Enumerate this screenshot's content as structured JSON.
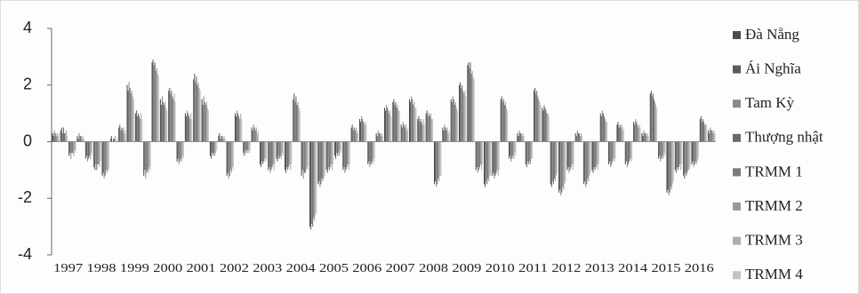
{
  "chart_data": {
    "type": "bar",
    "categories": [
      "1997",
      null,
      null,
      null,
      "1998",
      null,
      null,
      null,
      "1999",
      null,
      null,
      null,
      "2000",
      null,
      null,
      null,
      "2001",
      null,
      null,
      null,
      "2002",
      null,
      null,
      null,
      "2003",
      null,
      null,
      null,
      "2004",
      null,
      null,
      null,
      "2005",
      null,
      null,
      null,
      "2006",
      null,
      null,
      null,
      "2007",
      null,
      null,
      null,
      "2008",
      null,
      null,
      null,
      "2009",
      null,
      null,
      null,
      "2010",
      null,
      null,
      null,
      "2011",
      null,
      null,
      null,
      "2012",
      null,
      null,
      null,
      "2013",
      null,
      null,
      null,
      "2014",
      null,
      null,
      null,
      "2015",
      null,
      null,
      null,
      "2016",
      null,
      null,
      null
    ],
    "ylim": [
      -4,
      4
    ],
    "yticks": [
      4,
      2,
      0,
      -2,
      -4
    ],
    "grid": false,
    "series": [
      {
        "name": "Đà Nẵng",
        "color": "#4d4d4d",
        "values": [
          0.3,
          0.4,
          -0.5,
          0.2,
          -0.6,
          -0.9,
          -1.2,
          0.1,
          0.5,
          2.0,
          1.0,
          -1.2,
          2.8,
          1.5,
          1.8,
          -0.7,
          1.0,
          2.2,
          1.5,
          -0.5,
          0.2,
          -1.2,
          1.0,
          -0.4,
          0.5,
          -0.8,
          -1.0,
          -0.6,
          -1.0,
          1.5,
          -1.2,
          -3.0,
          -1.5,
          -1.0,
          -0.5,
          -1.0,
          0.5,
          0.8,
          -0.8,
          0.3,
          1.2,
          1.4,
          0.6,
          1.5,
          0.8,
          1.0,
          -1.5,
          0.5,
          1.5,
          2.0,
          2.7,
          -1.0,
          -1.5,
          -1.2,
          1.5,
          -0.6,
          0.3,
          -0.8,
          1.8,
          1.2,
          -1.5,
          -1.8,
          -1.0,
          0.3,
          -1.5,
          -1.0,
          1.0,
          -0.8,
          0.6,
          -0.8,
          0.7,
          0.3,
          1.7,
          -0.6,
          -1.8,
          -1.0,
          -1.2,
          -0.8,
          0.8,
          0.4
        ]
      },
      {
        "name": "Ái Nghĩa",
        "color": "#5c5c5c",
        "values": [
          0.2,
          0.5,
          -0.4,
          0.1,
          -0.5,
          -1.0,
          -1.1,
          0.2,
          0.6,
          1.8,
          1.1,
          -1.0,
          2.9,
          1.3,
          1.9,
          -0.6,
          0.9,
          2.4,
          1.3,
          -0.6,
          0.3,
          -1.1,
          0.9,
          -0.5,
          0.4,
          -0.9,
          -0.9,
          -0.7,
          -1.1,
          1.7,
          -1.0,
          -3.1,
          -1.4,
          -1.1,
          -0.6,
          -0.9,
          0.6,
          0.7,
          -0.7,
          0.2,
          1.1,
          1.5,
          0.5,
          1.4,
          0.9,
          1.1,
          -1.4,
          0.4,
          1.4,
          2.1,
          2.8,
          -0.9,
          -1.6,
          -1.1,
          1.6,
          -0.5,
          0.2,
          -0.9,
          1.9,
          1.1,
          -1.6,
          -1.7,
          -0.9,
          0.2,
          -1.4,
          -1.1,
          0.9,
          -0.7,
          0.7,
          -0.7,
          0.6,
          0.2,
          1.8,
          -0.5,
          -1.7,
          -1.1,
          -1.3,
          -0.7,
          0.9,
          0.3
        ]
      },
      {
        "name": "Tam Kỳ",
        "color": "#8a8a8a",
        "values": [
          0.4,
          0.3,
          -0.6,
          0.3,
          -0.7,
          -0.8,
          -1.3,
          0.0,
          0.4,
          2.1,
          0.9,
          -1.3,
          2.7,
          1.6,
          1.7,
          -0.8,
          1.1,
          2.1,
          1.6,
          -0.4,
          0.1,
          -1.3,
          1.1,
          -0.3,
          0.6,
          -0.7,
          -1.1,
          -0.5,
          -0.9,
          1.4,
          -1.3,
          -2.9,
          -1.6,
          -0.9,
          -0.4,
          -1.1,
          0.4,
          0.9,
          -0.9,
          0.4,
          1.3,
          1.3,
          0.7,
          1.6,
          0.7,
          0.9,
          -1.6,
          0.6,
          1.6,
          1.9,
          2.6,
          -1.1,
          -1.4,
          -1.3,
          1.4,
          -0.7,
          0.4,
          -0.7,
          1.7,
          1.3,
          -1.4,
          -1.9,
          -1.1,
          0.4,
          -1.6,
          -0.9,
          1.1,
          -0.9,
          0.5,
          -0.9,
          0.8,
          0.4,
          1.6,
          -0.7,
          -1.9,
          -0.9,
          -1.1,
          -0.9,
          0.7,
          0.5
        ]
      },
      {
        "name": "Thượng nhật",
        "color": "#6a6a6a",
        "values": [
          0.3,
          0.5,
          -0.4,
          0.2,
          -0.6,
          -1.0,
          -1.2,
          0.1,
          0.5,
          1.9,
          1.0,
          -1.1,
          2.8,
          1.4,
          1.8,
          -0.7,
          1.0,
          2.3,
          1.4,
          -0.5,
          0.2,
          -1.2,
          1.0,
          -0.4,
          0.5,
          -0.8,
          -1.0,
          -0.6,
          -1.0,
          1.6,
          -1.1,
          -3.0,
          -1.5,
          -1.0,
          -0.5,
          -1.0,
          0.5,
          0.8,
          -0.8,
          0.3,
          1.2,
          1.4,
          0.6,
          1.5,
          0.8,
          1.0,
          -1.5,
          0.5,
          1.5,
          2.0,
          2.8,
          -1.0,
          -1.5,
          -1.2,
          1.5,
          -0.6,
          0.3,
          -0.8,
          1.8,
          1.2,
          -1.5,
          -1.8,
          -1.0,
          0.3,
          -1.5,
          -1.0,
          1.0,
          -0.8,
          0.6,
          -0.8,
          0.7,
          0.3,
          1.7,
          -0.6,
          -1.8,
          -1.0,
          -1.2,
          -0.8,
          0.8,
          0.4
        ]
      },
      {
        "name": "TRMM 1",
        "color": "#7a7a7a",
        "values": [
          0.2,
          0.3,
          -0.4,
          0.2,
          -0.5,
          -0.8,
          -1.0,
          0.1,
          0.4,
          1.7,
          0.9,
          -1.0,
          2.5,
          1.3,
          1.6,
          -0.6,
          0.9,
          2.0,
          1.3,
          -0.4,
          0.2,
          -1.0,
          0.9,
          -0.3,
          0.4,
          -0.7,
          -0.9,
          -0.5,
          -0.9,
          1.3,
          -1.1,
          -2.7,
          -1.3,
          -0.9,
          -0.4,
          -0.9,
          0.4,
          0.7,
          -0.7,
          0.3,
          1.1,
          1.2,
          0.5,
          1.3,
          0.7,
          0.9,
          -1.3,
          0.4,
          1.3,
          1.8,
          2.4,
          -0.9,
          -1.3,
          -1.1,
          1.3,
          -0.5,
          0.3,
          -0.7,
          1.6,
          1.1,
          -1.3,
          -1.6,
          -0.9,
          0.3,
          -1.3,
          -0.9,
          0.9,
          -0.7,
          0.5,
          -0.7,
          0.6,
          0.3,
          1.5,
          -0.5,
          -1.6,
          -0.9,
          -1.1,
          -0.7,
          0.7,
          0.4
        ]
      },
      {
        "name": "TRMM 2",
        "color": "#9a9a9a",
        "values": [
          0.3,
          0.3,
          -0.5,
          0.1,
          -0.6,
          -0.8,
          -1.1,
          0.2,
          0.5,
          1.8,
          0.8,
          -1.1,
          2.6,
          1.4,
          1.5,
          -0.7,
          0.8,
          2.1,
          1.4,
          -0.5,
          0.1,
          -1.1,
          0.8,
          -0.4,
          0.5,
          -0.6,
          -0.8,
          -0.6,
          -0.8,
          1.4,
          -1.0,
          -2.8,
          -1.4,
          -0.8,
          -0.5,
          -0.8,
          0.5,
          0.6,
          -0.8,
          0.2,
          1.0,
          1.3,
          0.6,
          1.4,
          0.6,
          1.0,
          -1.4,
          0.5,
          1.4,
          1.7,
          2.5,
          -0.8,
          -1.4,
          -1.0,
          1.4,
          -0.6,
          0.2,
          -0.8,
          1.5,
          1.0,
          -1.4,
          -1.7,
          -0.8,
          0.2,
          -1.4,
          -0.8,
          0.8,
          -0.6,
          0.6,
          -0.6,
          0.5,
          0.2,
          1.4,
          -0.6,
          -1.7,
          -0.8,
          -1.0,
          -0.8,
          0.6,
          0.3
        ]
      },
      {
        "name": "TRMM 3",
        "color": "#adadad",
        "values": [
          0.2,
          0.4,
          -0.3,
          0.2,
          -0.4,
          -0.9,
          -1.0,
          0.0,
          0.3,
          1.6,
          1.0,
          -0.9,
          2.4,
          1.2,
          1.7,
          -0.5,
          1.0,
          1.9,
          1.2,
          -0.4,
          0.2,
          -0.9,
          1.0,
          -0.3,
          0.3,
          -0.7,
          -1.0,
          -0.4,
          -1.0,
          1.2,
          -0.9,
          -2.6,
          -1.3,
          -1.0,
          -0.3,
          -1.0,
          0.3,
          0.7,
          -0.6,
          0.3,
          1.1,
          1.1,
          0.4,
          1.2,
          0.8,
          0.8,
          -1.2,
          0.3,
          1.2,
          1.8,
          2.3,
          -1.0,
          -1.2,
          -1.2,
          1.2,
          -0.4,
          0.3,
          -0.6,
          1.4,
          1.0,
          -1.2,
          -1.5,
          -1.0,
          0.3,
          -1.2,
          -1.0,
          0.7,
          -0.7,
          0.4,
          -0.7,
          0.6,
          0.3,
          1.3,
          -0.4,
          -1.5,
          -1.0,
          -1.0,
          -0.7,
          0.6,
          0.4
        ]
      },
      {
        "name": "TRMM 4",
        "color": "#c4c4c4",
        "values": [
          0.3,
          0.2,
          -0.4,
          0.1,
          -0.5,
          -0.7,
          -1.0,
          0.1,
          0.4,
          1.5,
          0.8,
          -1.0,
          2.3,
          1.1,
          1.4,
          -0.6,
          0.8,
          1.8,
          1.1,
          -0.3,
          0.1,
          -1.0,
          0.8,
          -0.4,
          0.4,
          -0.6,
          -0.8,
          -0.5,
          -0.8,
          1.1,
          -1.0,
          -2.5,
          -1.2,
          -0.8,
          -0.4,
          -0.8,
          0.4,
          0.6,
          -0.7,
          0.2,
          0.9,
          1.1,
          0.5,
          1.2,
          0.6,
          0.8,
          -1.2,
          0.4,
          1.1,
          1.6,
          2.2,
          -0.8,
          -1.2,
          -1.0,
          1.1,
          -0.5,
          0.2,
          -0.6,
          1.3,
          0.9,
          -1.1,
          -1.4,
          -0.8,
          0.2,
          -1.1,
          -0.8,
          0.7,
          -0.6,
          0.5,
          -0.6,
          0.5,
          0.2,
          1.2,
          -0.5,
          -1.4,
          -0.8,
          -0.9,
          -0.6,
          0.6,
          0.3
        ]
      }
    ]
  }
}
